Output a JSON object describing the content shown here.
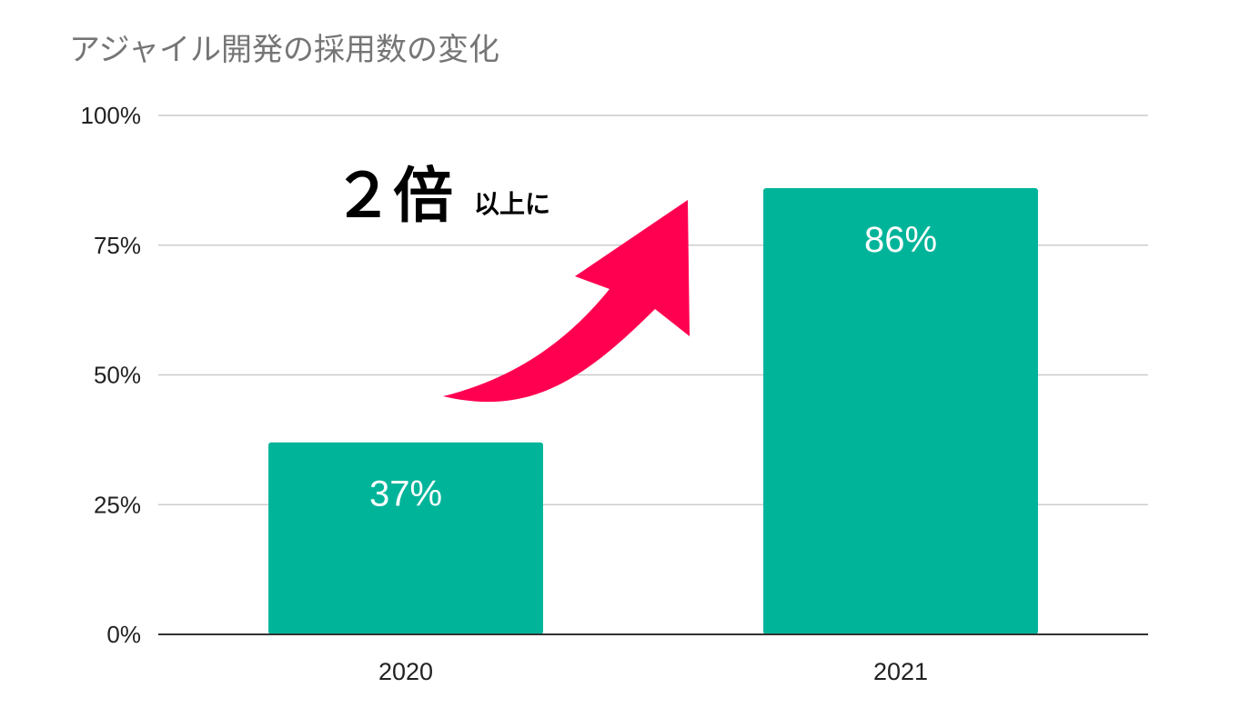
{
  "chart_data": {
    "type": "bar",
    "title": "アジャイル開発の採用数の変化",
    "categories": [
      "2020",
      "2021"
    ],
    "values": [
      37,
      86
    ],
    "data_labels": [
      "37%",
      "86%"
    ],
    "ylim": [
      0,
      100
    ],
    "yticks": [
      0,
      25,
      50,
      75,
      100
    ],
    "ytick_labels": [
      "0%",
      "25%",
      "50%",
      "75%",
      "100%"
    ],
    "grid": true,
    "legend": "none",
    "bar_color": "#00b49a",
    "annotation": {
      "big": "２倍",
      "small": "以上に",
      "arrow_color": "#ff0050"
    }
  }
}
